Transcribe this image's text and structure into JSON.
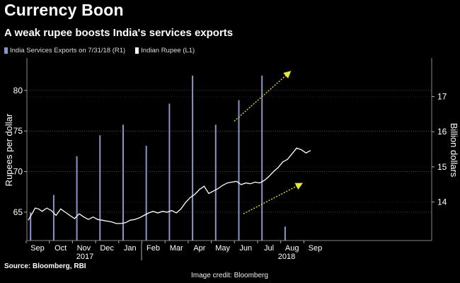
{
  "title": "Currency Boon",
  "subtitle": "A weak rupee boosts India's services exports",
  "source": "Source: Bloomberg, RBI",
  "image_credit": "Image credit: Bloomberg",
  "colors": {
    "bar": "#8a95c8",
    "line": "#ffffff",
    "arrow": "#e8e83a",
    "grid": "#555555",
    "background": "#000000"
  },
  "chart_data": {
    "type": "bar+line",
    "legend": [
      {
        "label": "India Services Exports on 7/31/18 (R1)",
        "color": "#8a95c8"
      },
      {
        "label": "Indian Rupee  (L1)",
        "color": "#ffffff"
      }
    ],
    "left_axis": {
      "label": "Rupees per dollar",
      "ticks": [
        65,
        70,
        75,
        80
      ],
      "range": [
        61.5,
        84
      ]
    },
    "right_axis": {
      "label": "Billion dollars",
      "ticks": [
        14,
        15,
        16,
        17
      ],
      "range": [
        12.9,
        18.1
      ]
    },
    "x_labels": [
      "Sep",
      "Oct",
      "Nov",
      "Dec",
      "Jan",
      "Feb",
      "Mar",
      "Apr",
      "May",
      "Jun",
      "Jul",
      "Aug",
      "Sep"
    ],
    "year_labels": [
      "2017",
      "2018"
    ],
    "series": [
      {
        "name": "India Services Exports",
        "axis": "right",
        "kind": "bar",
        "months": [
          "Aug 2017",
          "Sep 2017",
          "Oct 2017",
          "Nov 2017",
          "Dec 2017",
          "Jan 2018",
          "Feb 2018",
          "Mar 2018",
          "Apr 2018",
          "May 2018",
          "Jun 2018",
          "Jul 2018"
        ],
        "values": [
          13.7,
          14.2,
          15.3,
          15.9,
          16.2,
          15.6,
          16.8,
          17.6,
          16.2,
          16.9,
          17.6,
          13.3
        ]
      },
      {
        "name": "Indian Rupee",
        "axis": "left",
        "kind": "line",
        "x": [
          0,
          0.1,
          0.2,
          0.3,
          0.45,
          0.6,
          0.8,
          1.0,
          1.2,
          1.4,
          1.6,
          1.8,
          2.0,
          2.2,
          2.4,
          2.6,
          2.8,
          3.0,
          3.2,
          3.4,
          3.6,
          3.8,
          4.0,
          4.2,
          4.4,
          4.6,
          4.8,
          5.0,
          5.2,
          5.4,
          5.6,
          5.8,
          6.0,
          6.2,
          6.4,
          6.6,
          6.8,
          7.0,
          7.2,
          7.4,
          7.6,
          7.8,
          8.0,
          8.2,
          8.4,
          8.6,
          8.8,
          9.0,
          9.2,
          9.4,
          9.6,
          9.8,
          10.0,
          10.2,
          10.4,
          10.6,
          10.8,
          11.0,
          11.2,
          11.4,
          11.6,
          11.8,
          12.0,
          12.2
        ],
        "values": [
          64.0,
          64.5,
          65.0,
          65.5,
          65.4,
          65.1,
          65.5,
          65.2,
          64.6,
          65.4,
          65.0,
          64.6,
          64.2,
          64.8,
          64.4,
          64.1,
          64.4,
          64.1,
          64.0,
          63.9,
          63.8,
          63.6,
          63.6,
          63.7,
          64.0,
          64.1,
          64.3,
          64.6,
          64.9,
          65.1,
          64.9,
          65.1,
          65.0,
          65.2,
          64.9,
          65.4,
          66.2,
          66.8,
          67.2,
          67.8,
          68.2,
          67.3,
          67.6,
          67.9,
          68.3,
          68.6,
          68.7,
          68.8,
          68.4,
          68.6,
          68.5,
          68.7,
          68.6,
          68.9,
          69.4,
          70.0,
          70.5,
          71.2,
          71.5,
          72.2,
          72.9,
          72.7,
          72.3,
          72.6
        ]
      }
    ],
    "annotations": [
      {
        "type": "arrow",
        "description": "upward trend exports",
        "from_month": 8.5,
        "from_value": 16.3,
        "to_month": 10.9,
        "to_value": 17.7,
        "axis": "right"
      },
      {
        "type": "arrow",
        "description": "upward trend rupee",
        "from_month": 8.9,
        "from_value": 64.8,
        "to_month": 11.4,
        "to_value": 68.5,
        "axis": "left"
      }
    ]
  }
}
